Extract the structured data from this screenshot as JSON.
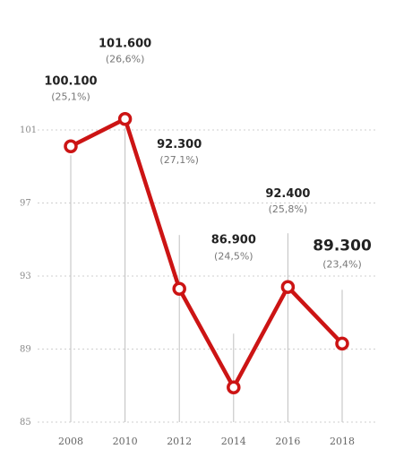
{
  "chart_data": {
    "type": "line",
    "x": [
      "2008",
      "2010",
      "2012",
      "2014",
      "2016",
      "2018"
    ],
    "series": [
      {
        "values": [
          100100,
          101600,
          92300,
          86900,
          92400,
          89300
        ],
        "value_labels": [
          "100.100",
          "101.600",
          "92.300",
          "86.900",
          "92.400",
          "89.300"
        ],
        "share_labels": [
          "(25,1%)",
          "(26,6%)",
          "(27,1%)",
          "(24,5%)",
          "(25,8%)",
          "(23,4%)"
        ]
      }
    ],
    "y_ticks": [
      85,
      89,
      93,
      97,
      101
    ],
    "y_tick_labels": [
      "85",
      "89",
      "93",
      "97",
      "101"
    ],
    "y_scale_factor": 1000,
    "ylim": [
      85,
      103.5
    ],
    "grid": "horizontal dotted",
    "highlight_last": true,
    "colors": {
      "line": "#cc1414",
      "marker_fill": "#ffffff",
      "grid": "#cfcfcf",
      "leader": "#bfbfbf"
    }
  }
}
